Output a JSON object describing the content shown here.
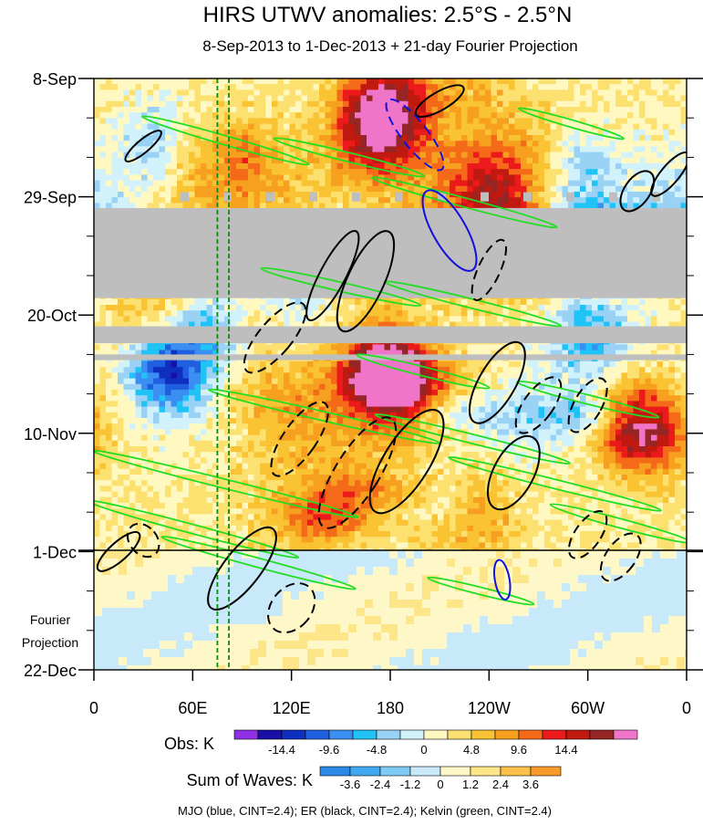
{
  "chart_data": {
    "type": "heatmap",
    "title": "HIRS UTWV anomalies: 2.5°S - 2.5°N",
    "subtitle": "8-Sep-2013 to 1-Dec-2013 + 21-day Fourier Projection",
    "x_ticks": [
      "0",
      "60E",
      "120E",
      "180",
      "120W",
      "60W",
      "0"
    ],
    "y_ticks": [
      "8-Sep",
      "29-Sep",
      "20-Oct",
      "10-Nov",
      "1-Dec",
      "22-Dec"
    ],
    "x_range": [
      0,
      360
    ],
    "y_range": [
      "8-Sep-2013",
      "22-Dec-2013"
    ],
    "projection_label_line1": "Fourier",
    "projection_label_line2": "Projection",
    "missing_data_periods": [
      {
        "from": "1-Oct",
        "to": "17-Oct"
      },
      {
        "from": "22-Oct",
        "to": "25-Oct"
      },
      {
        "from": "27-Oct",
        "to": "28-Oct"
      }
    ],
    "reference_longitudes": [
      75,
      82
    ],
    "obs_colorbar": {
      "label": "Obs: K",
      "tick_labels": [
        "-14.4",
        "-9.6",
        "-4.8",
        "0",
        "4.8",
        "9.6",
        "14.4"
      ],
      "colors": [
        "#8f30e6",
        "#1a0fa6",
        "#0f2fc0",
        "#2060e0",
        "#3b8ef2",
        "#1fc3f5",
        "#9ad2f6",
        "#d2f2fb",
        "#fff8c0",
        "#fce070",
        "#f9c333",
        "#f7a020",
        "#f56a18",
        "#ec1a1a",
        "#c01a10",
        "#962626",
        "#f075c8"
      ]
    },
    "waves_colorbar": {
      "label": "Sum of Waves: K",
      "tick_labels": [
        "-3.6",
        "-2.4",
        "-1.2",
        "0",
        "1.2",
        "2.4",
        "3.6"
      ],
      "colors": [
        "#2a8ae6",
        "#3fa8f0",
        "#7fcaf5",
        "#c8e9fa",
        "#fef8c8",
        "#fde68a",
        "#fbc04a",
        "#f89a2a"
      ]
    },
    "footer_note": "MJO (blue, CINT=2.4); ER (black, CINT=2.4); Kelvin (green, CINT=2.4)",
    "series": [
      {
        "name": "MJO",
        "color": "#1010e0"
      },
      {
        "name": "ER",
        "color": "#000000"
      },
      {
        "name": "Kelvin",
        "color": "#22dd22"
      }
    ]
  }
}
